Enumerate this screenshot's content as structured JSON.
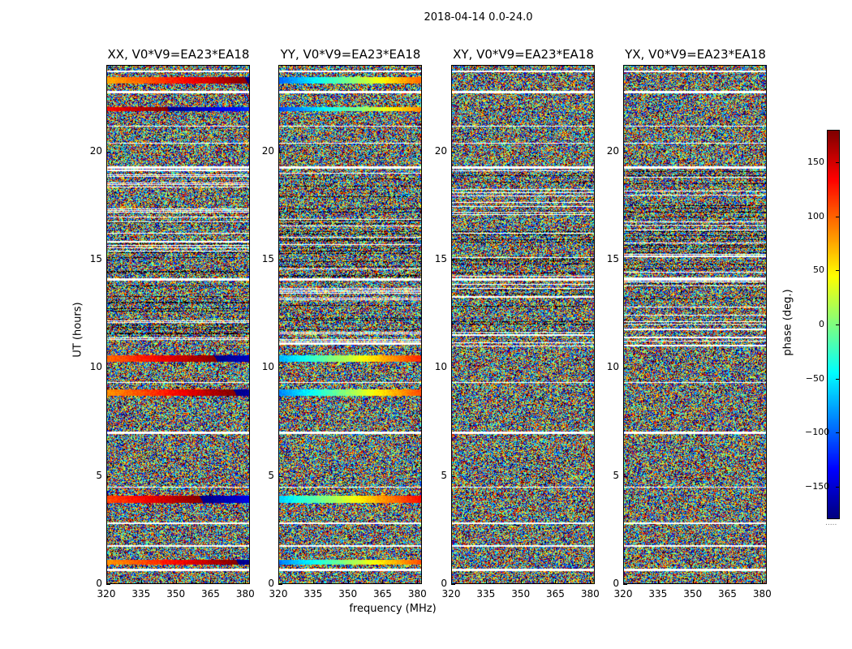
{
  "suptitle": "2018-04-14 0.0-24.0",
  "chart_data": {
    "type": "heatmap",
    "xlabel": "frequency (MHz)",
    "ylabel": "UT (hours)",
    "xlim": [
      320,
      382
    ],
    "ylim": [
      0,
      24
    ],
    "xticks": [
      "320",
      "335",
      "350",
      "365",
      "380"
    ],
    "yticks": [
      "0",
      "5",
      "10",
      "15",
      "20"
    ],
    "panels": [
      {
        "title": "XX, V0*V9=EA23*EA18"
      },
      {
        "title": "YY, V0*V9=EA23*EA18"
      },
      {
        "title": "XY, V0*V9=EA23*EA18"
      },
      {
        "title": "YX, V0*V9=EA23*EA18"
      }
    ],
    "colorbar": {
      "label": "phase (deg.)",
      "range": [
        -180,
        180
      ],
      "ticks": [
        "150",
        "100",
        "50",
        "0",
        "−50",
        "−100",
        "−150"
      ],
      "tick_values": [
        150,
        100,
        50,
        0,
        -50,
        -100,
        -150
      ],
      "colormap": "jet",
      "footer": "....."
    },
    "calibrator_bands_ut": [
      [
        0.9,
        1.1
      ],
      [
        3.75,
        4.1
      ],
      [
        8.7,
        9.0
      ],
      [
        10.3,
        10.6
      ],
      [
        23.2,
        23.5
      ],
      [
        21.9,
        22.1
      ]
    ],
    "gap_bands_ut": [
      [
        0.6,
        0.7
      ],
      [
        1.7,
        1.8
      ],
      [
        2.75,
        2.85
      ],
      [
        4.45,
        4.5
      ],
      [
        6.95,
        7.05
      ],
      [
        9.3,
        9.35
      ],
      [
        14.05,
        14.15
      ],
      [
        19.25,
        19.35
      ],
      [
        20.4,
        20.45
      ],
      [
        21.2,
        21.25
      ],
      [
        22.75,
        22.85
      ],
      [
        23.7,
        23.8
      ]
    ]
  }
}
